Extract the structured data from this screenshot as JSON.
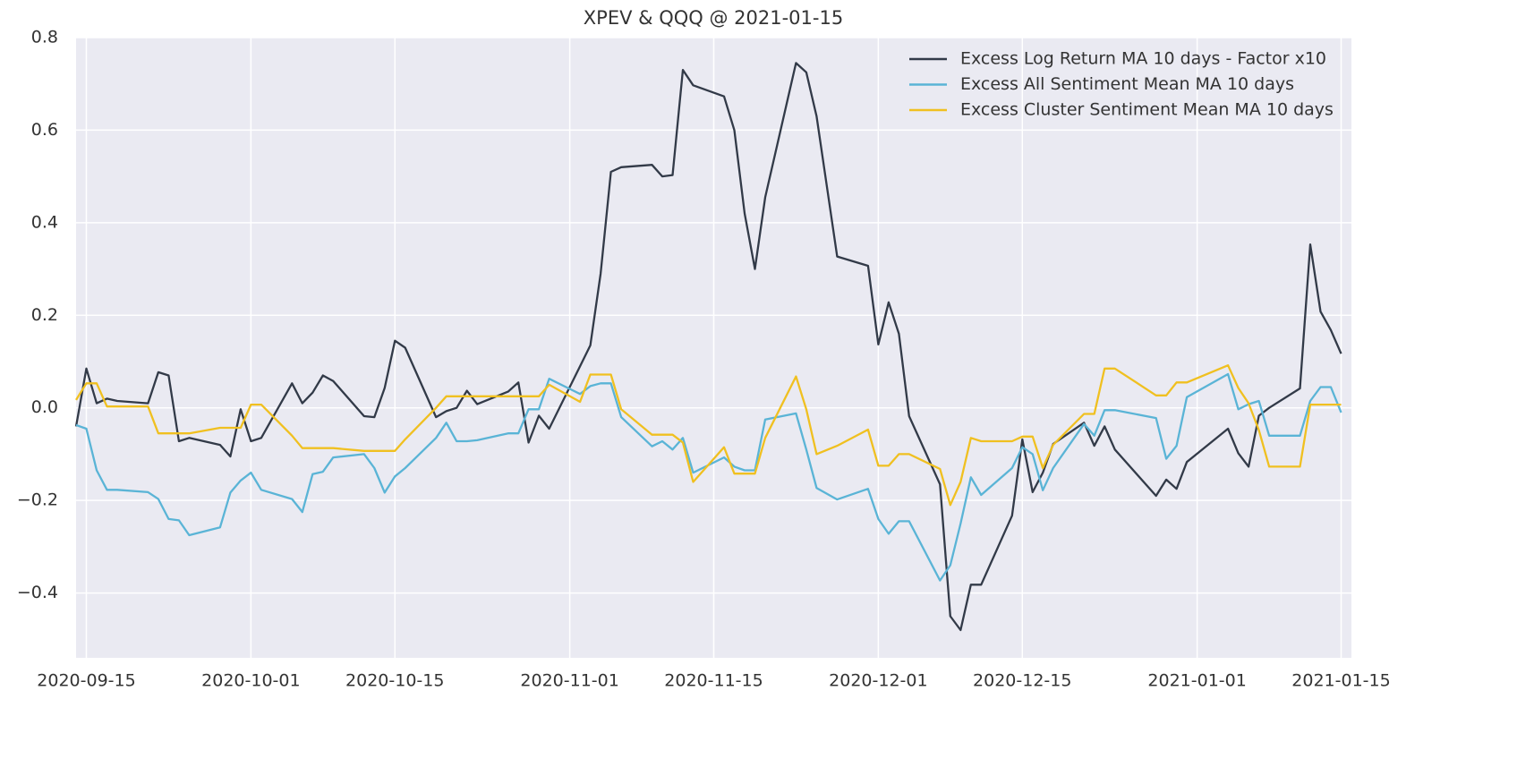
{
  "chart_data": {
    "type": "line",
    "title": "XPEV & QQQ @ 2021-01-15",
    "x": [
      "2020-09-14",
      "2020-09-15",
      "2020-09-16",
      "2020-09-17",
      "2020-09-18",
      "2020-09-21",
      "2020-09-22",
      "2020-09-23",
      "2020-09-24",
      "2020-09-25",
      "2020-09-28",
      "2020-09-29",
      "2020-09-30",
      "2020-10-01",
      "2020-10-02",
      "2020-10-05",
      "2020-10-06",
      "2020-10-07",
      "2020-10-08",
      "2020-10-09",
      "2020-10-12",
      "2020-10-13",
      "2020-10-14",
      "2020-10-15",
      "2020-10-16",
      "2020-10-19",
      "2020-10-20",
      "2020-10-21",
      "2020-10-22",
      "2020-10-23",
      "2020-10-26",
      "2020-10-27",
      "2020-10-28",
      "2020-10-29",
      "2020-10-30",
      "2020-11-02",
      "2020-11-03",
      "2020-11-04",
      "2020-11-05",
      "2020-11-06",
      "2020-11-09",
      "2020-11-10",
      "2020-11-11",
      "2020-11-12",
      "2020-11-13",
      "2020-11-16",
      "2020-11-17",
      "2020-11-18",
      "2020-11-19",
      "2020-11-20",
      "2020-11-23",
      "2020-11-24",
      "2020-11-25",
      "2020-11-27",
      "2020-11-30",
      "2020-12-01",
      "2020-12-02",
      "2020-12-03",
      "2020-12-04",
      "2020-12-07",
      "2020-12-08",
      "2020-12-09",
      "2020-12-10",
      "2020-12-11",
      "2020-12-14",
      "2020-12-15",
      "2020-12-16",
      "2020-12-17",
      "2020-12-18",
      "2020-12-21",
      "2020-12-22",
      "2020-12-23",
      "2020-12-24",
      "2020-12-28",
      "2020-12-29",
      "2020-12-30",
      "2020-12-31",
      "2021-01-04",
      "2021-01-05",
      "2021-01-06",
      "2021-01-07",
      "2021-01-08",
      "2021-01-11",
      "2021-01-12",
      "2021-01-13",
      "2021-01-14",
      "2021-01-15"
    ],
    "series": [
      {
        "name": "Excess Log Return MA 10 days - Factor x10",
        "color": "#323a48",
        "values": [
          -0.04,
          0.085,
          0.01,
          0.02,
          0.015,
          0.01,
          0.077,
          0.07,
          -0.072,
          -0.065,
          -0.08,
          -0.105,
          -0.003,
          -0.072,
          -0.065,
          0.053,
          0.01,
          0.033,
          0.07,
          0.058,
          -0.018,
          -0.02,
          0.043,
          0.145,
          0.13,
          -0.02,
          -0.007,
          0.0,
          0.037,
          0.008,
          0.035,
          0.055,
          -0.075,
          -0.017,
          -0.045,
          0.09,
          0.135,
          0.29,
          0.51,
          0.52,
          0.525,
          0.5,
          0.503,
          0.73,
          0.697,
          0.673,
          0.6,
          0.42,
          0.3,
          0.455,
          0.745,
          0.725,
          0.63,
          0.327,
          0.307,
          0.137,
          0.228,
          0.16,
          -0.018,
          -0.165,
          -0.45,
          -0.48,
          -0.382,
          -0.382,
          -0.233,
          -0.068,
          -0.182,
          -0.14,
          -0.078,
          -0.032,
          -0.082,
          -0.04,
          -0.09,
          -0.19,
          -0.155,
          -0.175,
          -0.117,
          -0.045,
          -0.098,
          -0.127,
          -0.017,
          0.0,
          0.042,
          0.353,
          0.208,
          0.168,
          0.117
        ]
      },
      {
        "name": "Excess All Sentiment Mean MA 10 days",
        "color": "#5ab4d6",
        "values": [
          -0.037,
          -0.045,
          -0.135,
          -0.177,
          -0.177,
          -0.182,
          -0.197,
          -0.24,
          -0.243,
          -0.275,
          -0.258,
          -0.183,
          -0.157,
          -0.14,
          -0.177,
          -0.197,
          -0.225,
          -0.143,
          -0.138,
          -0.107,
          -0.1,
          -0.13,
          -0.183,
          -0.148,
          -0.13,
          -0.065,
          -0.032,
          -0.072,
          -0.072,
          -0.07,
          -0.055,
          -0.055,
          -0.003,
          -0.003,
          0.063,
          0.03,
          0.047,
          0.053,
          0.053,
          -0.02,
          -0.083,
          -0.072,
          -0.09,
          -0.065,
          -0.14,
          -0.107,
          -0.127,
          -0.135,
          -0.135,
          -0.025,
          -0.012,
          -0.09,
          -0.173,
          -0.198,
          -0.175,
          -0.24,
          -0.272,
          -0.245,
          -0.245,
          -0.373,
          -0.34,
          -0.25,
          -0.15,
          -0.188,
          -0.13,
          -0.085,
          -0.1,
          -0.178,
          -0.13,
          -0.035,
          -0.06,
          -0.005,
          -0.005,
          -0.022,
          -0.11,
          -0.082,
          0.023,
          0.073,
          -0.003,
          0.008,
          0.015,
          -0.06,
          -0.06,
          0.015,
          0.045,
          0.045,
          -0.01
        ]
      },
      {
        "name": "Excess Cluster Sentiment Mean MA 10 days",
        "color": "#f0c020",
        "values": [
          0.017,
          0.053,
          0.053,
          0.003,
          0.003,
          0.003,
          -0.055,
          -0.055,
          -0.055,
          -0.055,
          -0.043,
          -0.043,
          -0.043,
          0.007,
          0.007,
          -0.06,
          -0.087,
          -0.087,
          -0.087,
          -0.087,
          -0.093,
          -0.093,
          -0.093,
          -0.093,
          -0.068,
          0.0,
          0.025,
          0.025,
          0.025,
          0.025,
          0.025,
          0.025,
          0.025,
          0.025,
          0.05,
          0.013,
          0.072,
          0.072,
          0.072,
          -0.003,
          -0.058,
          -0.058,
          -0.058,
          -0.075,
          -0.16,
          -0.085,
          -0.142,
          -0.142,
          -0.142,
          -0.065,
          0.068,
          -0.003,
          -0.1,
          -0.082,
          -0.047,
          -0.125,
          -0.125,
          -0.1,
          -0.1,
          -0.132,
          -0.21,
          -0.16,
          -0.065,
          -0.072,
          -0.072,
          -0.062,
          -0.062,
          -0.13,
          -0.08,
          -0.013,
          -0.013,
          0.085,
          0.085,
          0.027,
          0.027,
          0.055,
          0.055,
          0.092,
          0.043,
          0.01,
          -0.048,
          -0.127,
          -0.127,
          0.007,
          0.007,
          0.007,
          0.007
        ]
      }
    ],
    "xlim": [
      "2020-09-14",
      "2021-01-16"
    ],
    "xticks": [
      "2020-09-15",
      "2020-10-01",
      "2020-10-15",
      "2020-11-01",
      "2020-11-15",
      "2020-12-01",
      "2020-12-15",
      "2021-01-01",
      "2021-01-15"
    ],
    "ylim": [
      -0.54,
      0.8
    ],
    "yticks": [
      {
        "value": -0.4,
        "label": "−0.4"
      },
      {
        "value": -0.2,
        "label": "−0.2"
      },
      {
        "value": 0,
        "label": "0.0"
      },
      0.2,
      0.4,
      0.6,
      0.8
    ],
    "grid": true,
    "legend": "upper right"
  }
}
